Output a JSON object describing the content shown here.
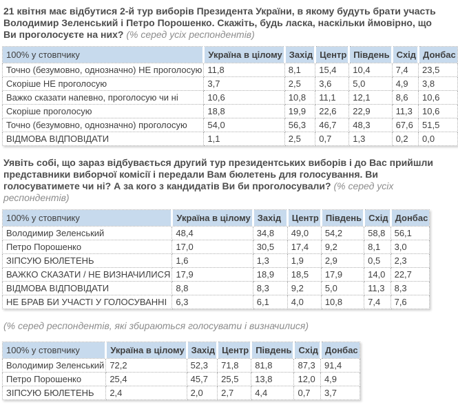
{
  "colors": {
    "table_header_bg": "#c7daed",
    "table_grid": "#adadad",
    "table_text": "#3f3f3f",
    "question_text": "#4d4d4d",
    "note_text": "#8c8c8c",
    "page_bg": "#ffffff"
  },
  "questions": {
    "q1": "21 квітня має відбутися 2-й тур виборів Президента України, в якому будуть брати участь Володимир Зеленський і Петро Порошенко. Скажіть, будь ласка, наскільки ймовірно, що Ви проголосуєте на них?",
    "q1_note": "(% серед усіх респондентів)",
    "q2": "Уявіть собі, що зараз відбувається другий тур президентських виборів і до Вас прийшли представники виборчої комісії і передали Вам бюлетень для голосування. Ви голосуватимете чи ні? А за кого з кандидатів Ви би проголосували?",
    "q2_note": "(% серед усіх респондентів)",
    "q3_note": "(% серед респондентів, які збираються голосувати і визначилися)"
  },
  "tables": [
    {
      "headers": [
        "100% у стовпчику",
        "Україна в цілому",
        "Захід",
        "Центр",
        "Південь",
        "Схід",
        "Донбас"
      ],
      "rows": [
        {
          "label": "Точно (безумовно, однозначно) НЕ проголосую",
          "values": [
            "11,8",
            "8,1",
            "15,4",
            "10,4",
            "7,4",
            "23,5"
          ]
        },
        {
          "label": "Скоріше НЕ проголосую",
          "values": [
            "3,7",
            "2,5",
            "3,6",
            "5,0",
            "4,9",
            "3,8"
          ]
        },
        {
          "label": "Важко сказати напевно, проголосую чи ні",
          "values": [
            "10,6",
            "10,8",
            "11,1",
            "12,1",
            "8,6",
            "10,6"
          ]
        },
        {
          "label": "Скоріше проголосую",
          "values": [
            "18,8",
            "19,9",
            "22,6",
            "22,9",
            "11,3",
            "10,6"
          ]
        },
        {
          "label": "Точно (безумовно, однозначно) проголосую",
          "values": [
            "54,0",
            "56,3",
            "46,7",
            "48,3",
            "67,6",
            "51,5"
          ]
        },
        {
          "label": "ВІДМОВА ВІДПОВІДАТИ",
          "values": [
            "1,1",
            "2,5",
            "0,7",
            "1,3",
            "0,2",
            "0,0"
          ]
        }
      ]
    },
    {
      "headers": [
        "100% у стовпчику",
        "Україна в цілому",
        "Захід",
        "Центр",
        "Південь",
        "Схід",
        "Донбас"
      ],
      "rows": [
        {
          "label": "Володимир Зеленський",
          "values": [
            "48,4",
            "34,8",
            "49,0",
            "54,2",
            "58,8",
            "56,1"
          ]
        },
        {
          "label": "Петро Порошенко",
          "values": [
            "17,0",
            "30,5",
            "17,4",
            "9,2",
            "8,1",
            "3,0"
          ]
        },
        {
          "label": "ЗІПСУЮ БЮЛЕТЕНЬ",
          "values": [
            "1,6",
            "1,3",
            "1,9",
            "2,9",
            "0,5",
            "2,3"
          ]
        },
        {
          "label": "ВАЖКО СКАЗАТИ / НЕ ВИЗНАЧИЛИСЯ",
          "values": [
            "17,9",
            "18,9",
            "18,5",
            "17,9",
            "14,0",
            "22,7"
          ]
        },
        {
          "label": "ВІДМОВА ВІДПОВІДАТИ",
          "values": [
            "8,8",
            "8,3",
            "9,2",
            "5,0",
            "11,3",
            "8,3"
          ]
        },
        {
          "label": "НЕ БРАВ БИ УЧАСТІ У ГОЛОСУВАННІ",
          "values": [
            "6,3",
            "6,1",
            "4,0",
            "10,8",
            "7,4",
            "7,6"
          ]
        }
      ]
    },
    {
      "headers": [
        "100% у стовпчику",
        "Україна в цілому",
        "Захід",
        "Центр",
        "Південь",
        "Схід",
        "Донбас"
      ],
      "rows": [
        {
          "label": "Володимир Зеленський",
          "values": [
            "72,2",
            "52,3",
            "71,8",
            "81,8",
            "87,3",
            "91,4"
          ]
        },
        {
          "label": "Петро Порошенко",
          "values": [
            "25,4",
            "45,7",
            "25,5",
            "13,8",
            "12,0",
            "4,9"
          ]
        },
        {
          "label": "ЗІПСУЮ БЮЛЕТЕНЬ",
          "values": [
            "2,4",
            "2,0",
            "2,7",
            "4,4",
            "0,7",
            "3,7"
          ]
        }
      ]
    }
  ]
}
